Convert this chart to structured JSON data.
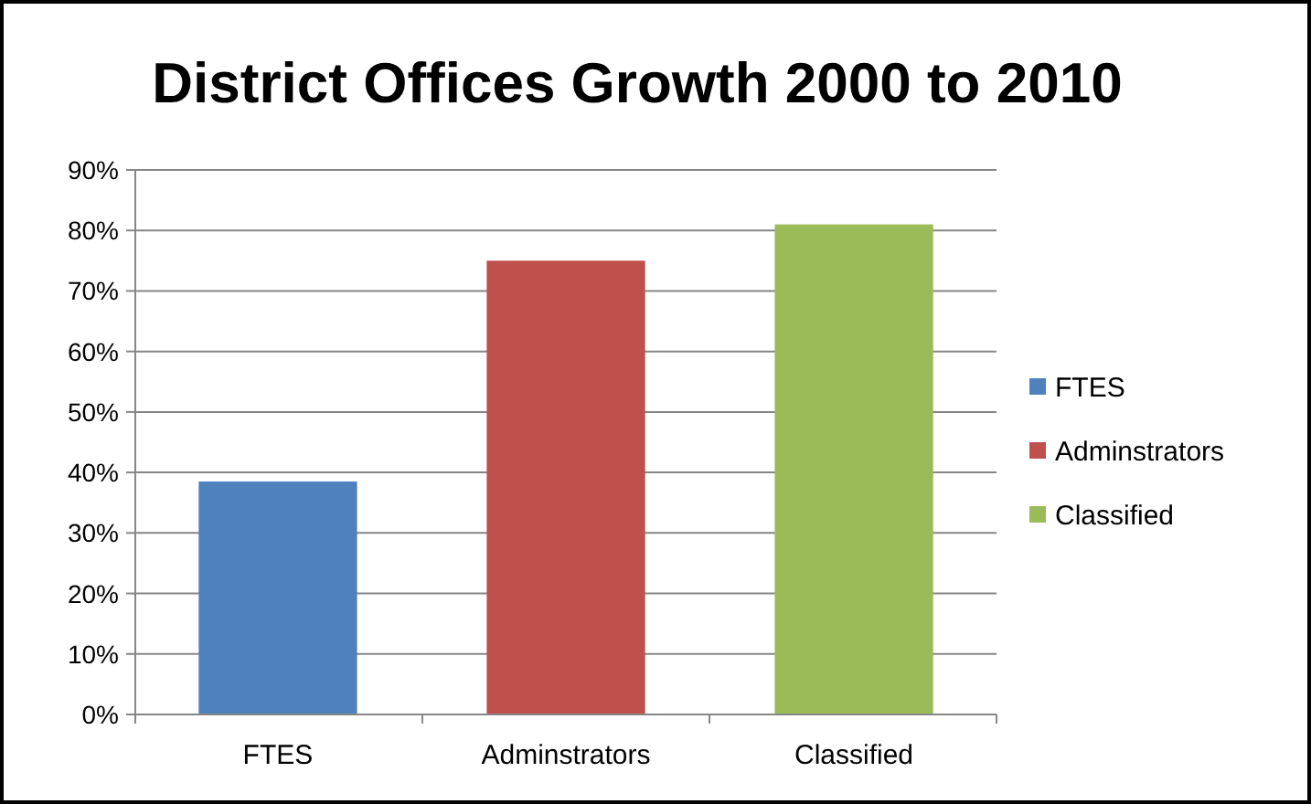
{
  "chart_data": {
    "type": "bar",
    "title": "District Offices Growth 2000 to 2010",
    "categories": [
      "FTES",
      "Adminstrators",
      "Classified"
    ],
    "series": [
      {
        "name": "FTES",
        "color": "#4f81bd",
        "values": [
          38.5,
          null,
          null
        ]
      },
      {
        "name": "Adminstrators",
        "color": "#c0504d",
        "values": [
          null,
          75,
          null
        ]
      },
      {
        "name": "Classified",
        "color": "#9bbb59",
        "values": [
          null,
          null,
          81
        ]
      }
    ],
    "ylim": [
      0,
      90
    ],
    "yticks": [
      {
        "value": 0,
        "label": "0%"
      },
      {
        "value": 10,
        "label": "10%"
      },
      {
        "value": 20,
        "label": "20%"
      },
      {
        "value": 30,
        "label": "30%"
      },
      {
        "value": 40,
        "label": "40%"
      },
      {
        "value": 50,
        "label": "50%"
      },
      {
        "value": 60,
        "label": "60%"
      },
      {
        "value": 70,
        "label": "70%"
      },
      {
        "value": 80,
        "label": "80%"
      },
      {
        "value": 90,
        "label": "90%"
      }
    ],
    "grid": "y",
    "legend": "right"
  }
}
